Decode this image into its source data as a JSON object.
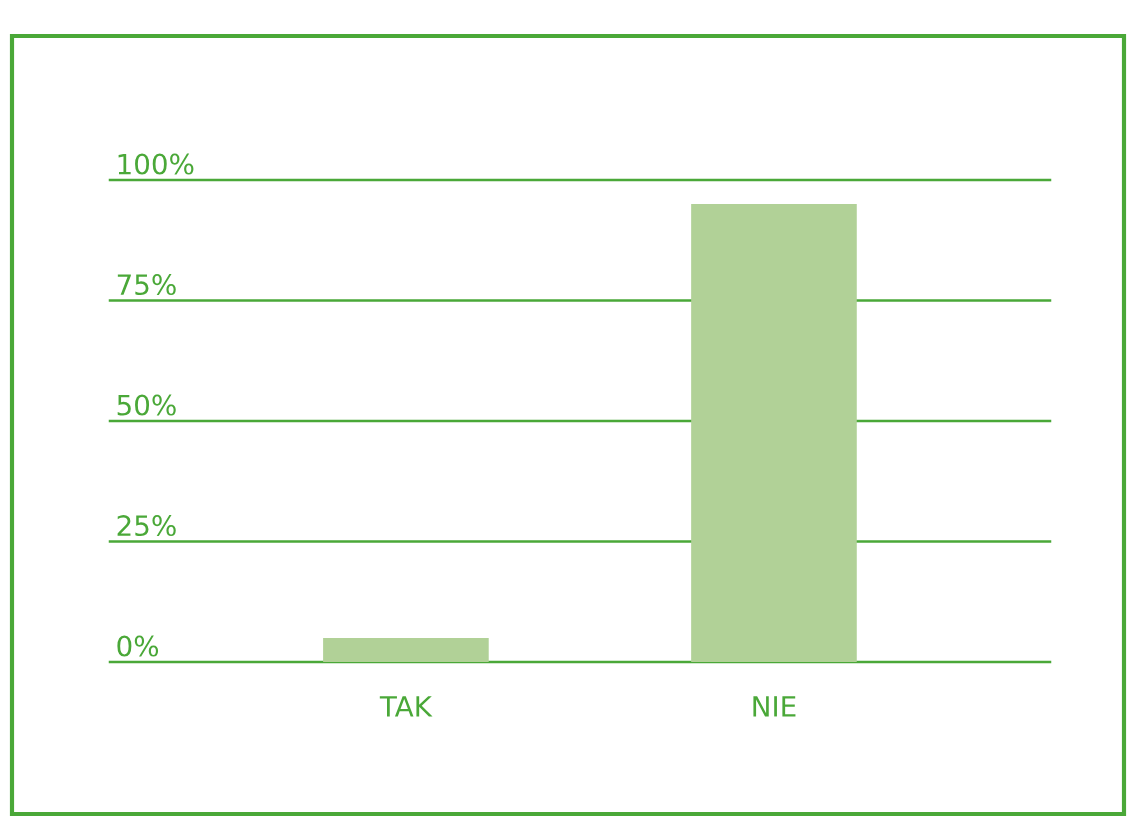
{
  "chart_data": {
    "type": "bar",
    "categories": [
      "TAK",
      "NIE"
    ],
    "values": [
      5,
      95
    ],
    "color": "#b1d197",
    "ylim": [
      0,
      100
    ],
    "yticks": [
      {
        "value": 0,
        "label": "0%"
      },
      {
        "value": 25,
        "label": "25%"
      },
      {
        "value": 50,
        "label": "50%"
      },
      {
        "value": 75,
        "label": "75%"
      },
      {
        "value": 100,
        "label": "100%"
      }
    ],
    "grid": "y"
  }
}
